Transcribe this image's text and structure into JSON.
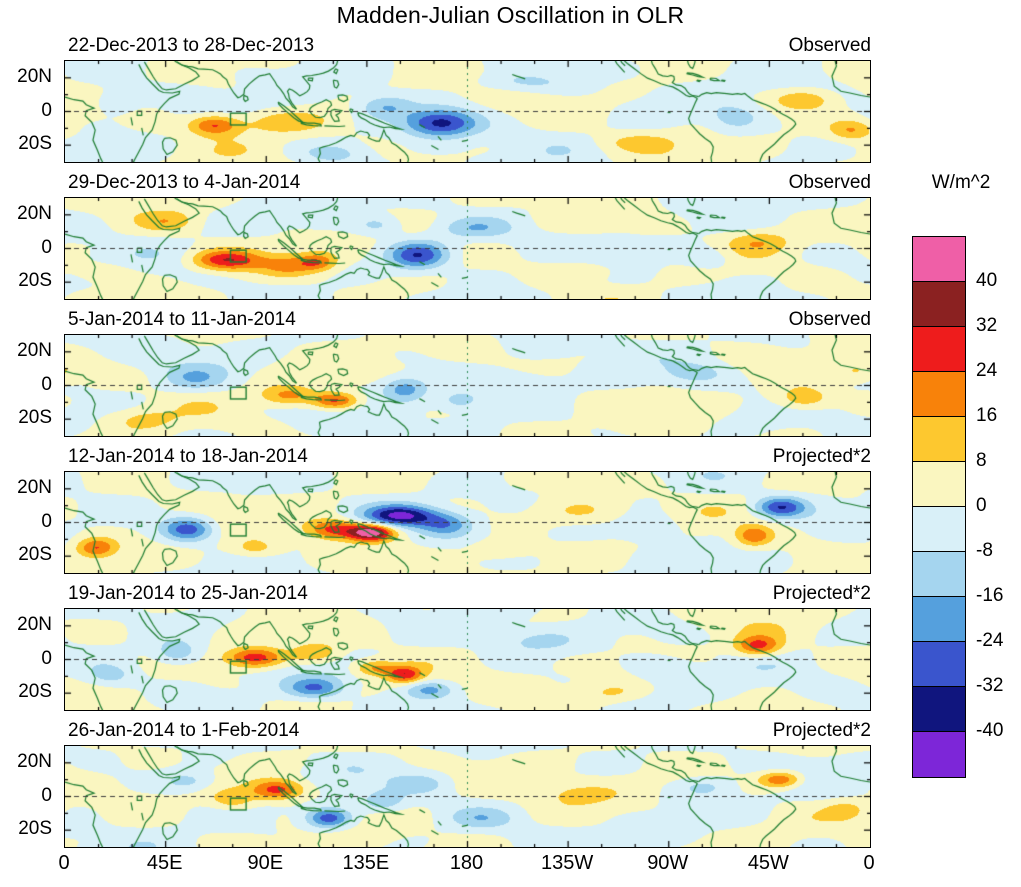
{
  "title": "Madden-Julian Oscillation in OLR",
  "colorbar": {
    "unit_label": "W/m^2",
    "tick_labels": [
      "40",
      "32",
      "24",
      "16",
      "8",
      "0",
      "-8",
      "-16",
      "-24",
      "-32",
      "-40"
    ],
    "colors_top_to_bottom": [
      "#ef5fa7",
      "#8b2121",
      "#ee1c1c",
      "#f8820a",
      "#fdc82f",
      "#faf6c0",
      "#d9f0f8",
      "#a5d5ef",
      "#55a0dd",
      "#3a55cd",
      "#10157e",
      "#7d26d8"
    ]
  },
  "x_axis": {
    "tick_labels": [
      "0",
      "45E",
      "90E",
      "135E",
      "180",
      "135W",
      "90W",
      "45W",
      "0"
    ]
  },
  "y_axis": {
    "tick_labels": [
      "20N",
      "0",
      "20S"
    ]
  },
  "chart_data": {
    "type": "heatmap",
    "title": "Madden-Julian Oscillation in OLR",
    "units": "W/m^2",
    "lon_range_deg": [
      0,
      360
    ],
    "lat_range_deg": [
      -30,
      30
    ],
    "contour_levels_wm2": [
      -40,
      -32,
      -24,
      -16,
      -8,
      0,
      8,
      16,
      24,
      32,
      40
    ],
    "index_box": {
      "lon_range": [
        74,
        81
      ],
      "lat_range": [
        -8,
        -1
      ]
    },
    "panels": [
      {
        "date_range": "22-Dec-2013 to 28-Dec-2013",
        "source_label": "Observed",
        "anomaly_centers": [
          {
            "lon": 67,
            "lat": -8,
            "wm2": 26,
            "rlon": 11,
            "rlat": 6
          },
          {
            "lon": 95,
            "lat": -6,
            "wm2": 12,
            "rlon": 20,
            "rlat": 7
          },
          {
            "lon": 168,
            "lat": -7,
            "wm2": -34,
            "rlon": 16,
            "rlat": 8
          },
          {
            "lon": 143,
            "lat": 3,
            "wm2": -16,
            "rlon": 12,
            "rlat": 7
          },
          {
            "lon": 205,
            "lat": 17,
            "wm2": -10,
            "rlon": 22,
            "rlat": 6
          },
          {
            "lon": 255,
            "lat": -18,
            "wm2": 8,
            "rlon": 18,
            "rlat": 6
          },
          {
            "lon": 300,
            "lat": -4,
            "wm2": -12,
            "rlon": 12,
            "rlat": 8
          },
          {
            "lon": 331,
            "lat": 7,
            "wm2": 14,
            "rlon": 13,
            "rlat": 6
          },
          {
            "lon": 352,
            "lat": -11,
            "wm2": 16,
            "rlon": 10,
            "rlat": 6
          },
          {
            "lon": 22,
            "lat": 6,
            "wm2": -10,
            "rlon": 12,
            "rlat": 8
          },
          {
            "lon": 120,
            "lat": -25,
            "wm2": -10,
            "rlon": 14,
            "rlat": 6
          }
        ]
      },
      {
        "date_range": "29-Dec-2013 to 4-Jan-2014",
        "source_label": "Observed",
        "anomaly_centers": [
          {
            "lon": 72,
            "lat": -7,
            "wm2": 30,
            "rlon": 15,
            "rlat": 6
          },
          {
            "lon": 100,
            "lat": -10,
            "wm2": 14,
            "rlon": 12,
            "rlat": 6
          },
          {
            "lon": 113,
            "lat": -8,
            "wm2": 18,
            "rlon": 8,
            "rlat": 5
          },
          {
            "lon": 158,
            "lat": -4,
            "wm2": -30,
            "rlon": 13,
            "rlat": 8
          },
          {
            "lon": 183,
            "lat": 12,
            "wm2": -12,
            "rlon": 16,
            "rlat": 6
          },
          {
            "lon": 140,
            "lat": 14,
            "wm2": -12,
            "rlon": 11,
            "rlat": 6
          },
          {
            "lon": 232,
            "lat": -13,
            "wm2": 10,
            "rlon": 18,
            "rlat": 6
          },
          {
            "lon": 310,
            "lat": 4,
            "wm2": 12,
            "rlon": 14,
            "rlat": 7
          },
          {
            "lon": 288,
            "lat": -6,
            "wm2": -10,
            "rlon": 12,
            "rlat": 7
          },
          {
            "lon": 18,
            "lat": -14,
            "wm2": 8,
            "rlon": 14,
            "rlat": 6
          },
          {
            "lon": 46,
            "lat": 16,
            "wm2": 10,
            "rlon": 12,
            "rlat": 6
          }
        ]
      },
      {
        "date_range": "5-Jan-2014 to 11-Jan-2014",
        "source_label": "Observed",
        "anomaly_centers": [
          {
            "lon": 100,
            "lat": -6,
            "wm2": 20,
            "rlon": 13,
            "rlat": 6
          },
          {
            "lon": 121,
            "lat": -9,
            "wm2": 26,
            "rlon": 10,
            "rlat": 5
          },
          {
            "lon": 152,
            "lat": -2,
            "wm2": -20,
            "rlon": 10,
            "rlat": 7
          },
          {
            "lon": 177,
            "lat": -9,
            "wm2": -14,
            "rlon": 10,
            "rlat": 6
          },
          {
            "lon": 58,
            "lat": 4,
            "wm2": -12,
            "rlon": 13,
            "rlat": 7
          },
          {
            "lon": 205,
            "lat": 2,
            "wm2": -8,
            "rlon": 18,
            "rlat": 8
          },
          {
            "lon": 282,
            "lat": 7,
            "wm2": -10,
            "rlon": 13,
            "rlat": 6
          },
          {
            "lon": 330,
            "lat": -8,
            "wm2": 18,
            "rlon": 13,
            "rlat": 7
          },
          {
            "lon": 355,
            "lat": 8,
            "wm2": 10,
            "rlon": 10,
            "rlat": 6
          },
          {
            "lon": 35,
            "lat": -20,
            "wm2": 8,
            "rlon": 14,
            "rlat": 6
          }
        ]
      },
      {
        "date_range": "12-Jan-2014 to 18-Jan-2014",
        "source_label": "Projected*2",
        "anomaly_centers": [
          {
            "lon": 137,
            "lat": -6,
            "wm2": 46,
            "rlon": 10,
            "rlat": 5
          },
          {
            "lon": 120,
            "lat": -4,
            "wm2": 28,
            "rlon": 12,
            "rlat": 6
          },
          {
            "lon": 150,
            "lat": 4,
            "wm2": -38,
            "rlon": 15,
            "rlat": 6
          },
          {
            "lon": 170,
            "lat": -1,
            "wm2": -20,
            "rlon": 12,
            "rlat": 7
          },
          {
            "lon": 55,
            "lat": -4,
            "wm2": -28,
            "rlon": 11,
            "rlat": 7
          },
          {
            "lon": 14,
            "lat": -15,
            "wm2": 24,
            "rlon": 9,
            "rlat": 6
          },
          {
            "lon": 85,
            "lat": -16,
            "wm2": 14,
            "rlon": 12,
            "rlat": 6
          },
          {
            "lon": 320,
            "lat": 9,
            "wm2": -30,
            "rlon": 11,
            "rlat": 6
          },
          {
            "lon": 308,
            "lat": -8,
            "wm2": 22,
            "rlon": 8,
            "rlat": 6
          },
          {
            "lon": 230,
            "lat": 6,
            "wm2": 10,
            "rlon": 20,
            "rlat": 8
          },
          {
            "lon": 195,
            "lat": -16,
            "wm2": 10,
            "rlon": 14,
            "rlat": 6
          },
          {
            "lon": 262,
            "lat": -3,
            "wm2": -12,
            "rlon": 14,
            "rlat": 8
          }
        ]
      },
      {
        "date_range": "19-Jan-2014 to 25-Jan-2014",
        "source_label": "Projected*2",
        "anomaly_centers": [
          {
            "lon": 85,
            "lat": 1,
            "wm2": 30,
            "rlon": 13,
            "rlat": 6
          },
          {
            "lon": 112,
            "lat": 4,
            "wm2": 16,
            "rlon": 11,
            "rlat": 6
          },
          {
            "lon": 138,
            "lat": -5,
            "wm2": 18,
            "rlon": 10,
            "rlat": 5
          },
          {
            "lon": 152,
            "lat": -9,
            "wm2": 28,
            "rlon": 8,
            "rlat": 5
          },
          {
            "lon": 112,
            "lat": -17,
            "wm2": -22,
            "rlon": 12,
            "rlat": 6
          },
          {
            "lon": 163,
            "lat": -18,
            "wm2": -16,
            "rlon": 10,
            "rlat": 5
          },
          {
            "lon": 50,
            "lat": 4,
            "wm2": -16,
            "rlon": 10,
            "rlat": 7
          },
          {
            "lon": 310,
            "lat": 8,
            "wm2": 26,
            "rlon": 10,
            "rlat": 6
          },
          {
            "lon": 212,
            "lat": 11,
            "wm2": -10,
            "rlon": 18,
            "rlat": 7
          },
          {
            "lon": 268,
            "lat": -6,
            "wm2": -10,
            "rlon": 14,
            "rlat": 7
          },
          {
            "lon": 20,
            "lat": -10,
            "wm2": -12,
            "rlon": 12,
            "rlat": 7
          },
          {
            "lon": 245,
            "lat": -20,
            "wm2": 8,
            "rlon": 14,
            "rlat": 6
          }
        ]
      },
      {
        "date_range": "26-Jan-2014 to 1-Feb-2014",
        "source_label": "Projected*2",
        "anomaly_centers": [
          {
            "lon": 95,
            "lat": 4,
            "wm2": 30,
            "rlon": 12,
            "rlat": 6
          },
          {
            "lon": 75,
            "lat": -2,
            "wm2": 14,
            "rlon": 10,
            "rlat": 6
          },
          {
            "lon": 118,
            "lat": -13,
            "wm2": -30,
            "rlon": 10,
            "rlat": 6
          },
          {
            "lon": 142,
            "lat": -3,
            "wm2": -14,
            "rlon": 10,
            "rlat": 6
          },
          {
            "lon": 320,
            "lat": 10,
            "wm2": 26,
            "rlon": 10,
            "rlat": 5
          },
          {
            "lon": 55,
            "lat": 9,
            "wm2": -12,
            "rlon": 12,
            "rlat": 6
          },
          {
            "lon": 228,
            "lat": 2,
            "wm2": 8,
            "rlon": 20,
            "rlat": 8
          },
          {
            "lon": 186,
            "lat": -13,
            "wm2": -10,
            "rlon": 14,
            "rlat": 6
          },
          {
            "lon": 286,
            "lat": 6,
            "wm2": -10,
            "rlon": 12,
            "rlat": 6
          },
          {
            "lon": 350,
            "lat": -8,
            "wm2": 10,
            "rlon": 10,
            "rlat": 6
          },
          {
            "lon": 160,
            "lat": 8,
            "wm2": -10,
            "rlon": 12,
            "rlat": 6
          }
        ]
      }
    ]
  }
}
